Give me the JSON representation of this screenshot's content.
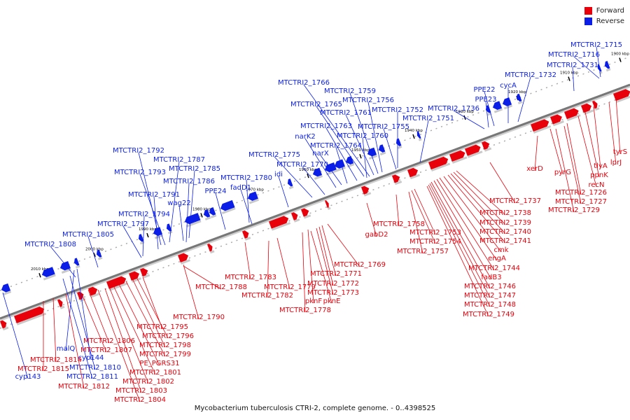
{
  "legend": {
    "forward": "Forward",
    "reverse": "Reverse"
  },
  "colors": {
    "forward": "#e8000b",
    "reverse": "#0a1ee8",
    "axis": "#888888"
  },
  "caption": "Mycobacterium tuberculosis CTRI-2, complete genome. - 0..4398525",
  "ticks": [
    "1900 kbp",
    "1910 kbp",
    "1920 kbp",
    "1930 kbp",
    "1940 kbp",
    "1950 kbp",
    "1960 kbp",
    "1970 kbp",
    "1980 kbp",
    "1990 kbp",
    "2000 kbp",
    "2010 kbp"
  ],
  "reverse_labels": [
    "MTCTRI2_1715",
    "MTCTRI2_1716",
    "MTCTRI2_1731",
    "MTCTRI2_1732",
    "cycA",
    "PPE22",
    "PPE23",
    "MTCTRI2_1736",
    "MTCTRI2_1751",
    "MTCTRI2_1752",
    "MTCTRI2_1766",
    "MTCTRI2_1759",
    "MTCTRI2_1756",
    "MTCTRI2_1765",
    "MTCTRI2_1761",
    "MTCTRI2_1763",
    "MTCTRI2_1755",
    "MTCTRI2_1760",
    "narK2",
    "MTCTRI2_1764",
    "narX",
    "MTCTRI2_1775",
    "MTCTRI2_1770",
    "idi",
    "MTCTRI2_1792",
    "MTCTRI2_1787",
    "MTCTRI2_1785",
    "MTCTRI2_1793",
    "MTCTRI2_1786",
    "MTCTRI2_1780",
    "fadD1",
    "PPE24",
    "MTCTRI2_1791",
    "wag22",
    "MTCTRI2_1794",
    "MTCTRI2_1797",
    "MTCTRI2_1805",
    "MTCTRI2_1808",
    "malQ",
    "cyp144",
    "MTCTRI2_1810",
    "MTCTRI2_1811",
    "cyp143"
  ],
  "forward_labels": [
    "tyrS",
    "lprJ",
    "tlyA",
    "ppnK",
    "recN",
    "xerD",
    "pyrG",
    "MTCTRI2_1726",
    "MTCTRI2_1727",
    "MTCTRI2_1729",
    "MTCTRI2_1737",
    "MTCTRI2_1738",
    "MTCTRI2_1739",
    "MTCTRI2_1740",
    "MTCTRI2_1741",
    "cmk",
    "engA",
    "MTCTRI2_1744",
    "fadB3",
    "MTCTRI2_1746",
    "MTCTRI2_1747",
    "MTCTRI2_1748",
    "MTCTRI2_1749",
    "gabD2",
    "MTCTRI2_1758",
    "MTCTRI2_1753",
    "MTCTRI2_1754",
    "MTCTRI2_1757",
    "MTCTRI2_1769",
    "MTCTRI2_1771",
    "MTCTRI2_1772",
    "MTCTRI2_1773",
    "pknF",
    "pknE",
    "MTCTRI2_1778",
    "MTCTRI2_1783",
    "MTCTRI2_1779",
    "MTCTRI2_1788",
    "MTCTRI2_1782",
    "MTCTRI2_1790",
    "MTCTRI2_1795",
    "MTCTRI2_1796",
    "MTCTRI2_1798",
    "MTCTRI2_1799",
    "PE_PGRS31",
    "MTCTRI2_1801",
    "MTCTRI2_1802",
    "MTCTRI2_1803",
    "MTCTRI2_1804",
    "MTCTRI2_1806",
    "MTCTRI2_1807",
    "MTCTRI2_1814",
    "MTCTRI2_1815",
    "MTCTRI2_1812"
  ]
}
